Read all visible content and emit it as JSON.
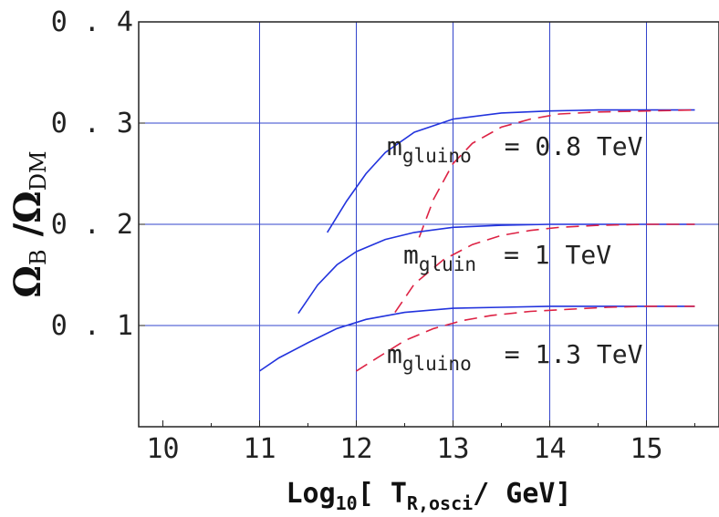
{
  "chart_data": {
    "type": "line",
    "xlabel": {
      "main": "Log",
      "sub10": "10",
      "bracket_open": "[ ",
      "T": "T",
      "sub_T": "R,osci",
      "rest": "/ GeV]"
    },
    "ylabel": {
      "omega1": "Ω",
      "sub1": "B",
      "slash": " /",
      "omega2": "Ω",
      "sub2": "DM"
    },
    "xlim": [
      9.75,
      15.75
    ],
    "ylim": [
      0,
      0.4
    ],
    "x_ticks": [
      10,
      11,
      12,
      13,
      14,
      15
    ],
    "x_tick_labels": [
      "10",
      "11",
      "12",
      "13",
      "14",
      "15"
    ],
    "y_ticks": [
      0.1,
      0.2,
      0.3,
      0.4
    ],
    "y_tick_labels": [
      "0.1",
      "0.2",
      "0.3",
      "0.4"
    ],
    "grid": true,
    "grid_x": [
      11,
      12,
      13,
      14,
      15
    ],
    "grid_y": [
      0.1,
      0.2,
      0.3
    ],
    "colors": {
      "solid": "#2233dd",
      "dashed": "#dd2244",
      "grid": "#3344cc",
      "axes": "#222222"
    },
    "series": [
      {
        "style": "solid",
        "x": [
          11.7,
          11.9,
          12.1,
          12.3,
          12.6,
          13.0,
          13.5,
          14.0,
          14.5,
          15.0,
          15.5
        ],
        "y": [
          0.192,
          0.223,
          0.25,
          0.271,
          0.291,
          0.304,
          0.31,
          0.312,
          0.313,
          0.313,
          0.313
        ]
      },
      {
        "style": "dashed",
        "x": [
          12.65,
          12.8,
          13.0,
          13.2,
          13.5,
          13.8,
          14.1,
          14.5,
          15.0,
          15.5
        ],
        "y": [
          0.187,
          0.225,
          0.26,
          0.28,
          0.296,
          0.304,
          0.309,
          0.311,
          0.312,
          0.313
        ]
      },
      {
        "style": "solid",
        "x": [
          11.4,
          11.6,
          11.8,
          12.0,
          12.3,
          12.6,
          13.0,
          13.5,
          14.0,
          14.5,
          15.0,
          15.5
        ],
        "y": [
          0.112,
          0.14,
          0.16,
          0.173,
          0.185,
          0.192,
          0.197,
          0.199,
          0.2,
          0.2,
          0.2,
          0.2
        ]
      },
      {
        "style": "dashed",
        "x": [
          12.4,
          12.6,
          12.9,
          13.2,
          13.5,
          13.8,
          14.1,
          14.5,
          15.0,
          15.5
        ],
        "y": [
          0.113,
          0.141,
          0.165,
          0.18,
          0.189,
          0.194,
          0.197,
          0.199,
          0.2,
          0.2
        ]
      },
      {
        "style": "solid",
        "x": [
          11.0,
          11.2,
          11.5,
          11.8,
          12.1,
          12.5,
          13.0,
          13.5,
          14.0,
          14.5,
          15.0,
          15.5
        ],
        "y": [
          0.055,
          0.068,
          0.083,
          0.097,
          0.106,
          0.113,
          0.117,
          0.118,
          0.119,
          0.119,
          0.119,
          0.119
        ]
      },
      {
        "style": "dashed",
        "x": [
          12.0,
          12.2,
          12.5,
          12.8,
          13.1,
          13.4,
          13.8,
          14.2,
          14.6,
          15.0,
          15.5
        ],
        "y": [
          0.055,
          0.067,
          0.085,
          0.097,
          0.105,
          0.11,
          0.114,
          0.116,
          0.118,
          0.119,
          0.119
        ]
      }
    ],
    "annotations": [
      {
        "base": "m",
        "sub": "gluino",
        "value": "= 0.8  TeV"
      },
      {
        "base": "m",
        "sub": "gluin",
        "value": "=  1  TeV"
      },
      {
        "base": "m",
        "sub": "gluino",
        "value": "= 1.3  TeV"
      }
    ]
  }
}
